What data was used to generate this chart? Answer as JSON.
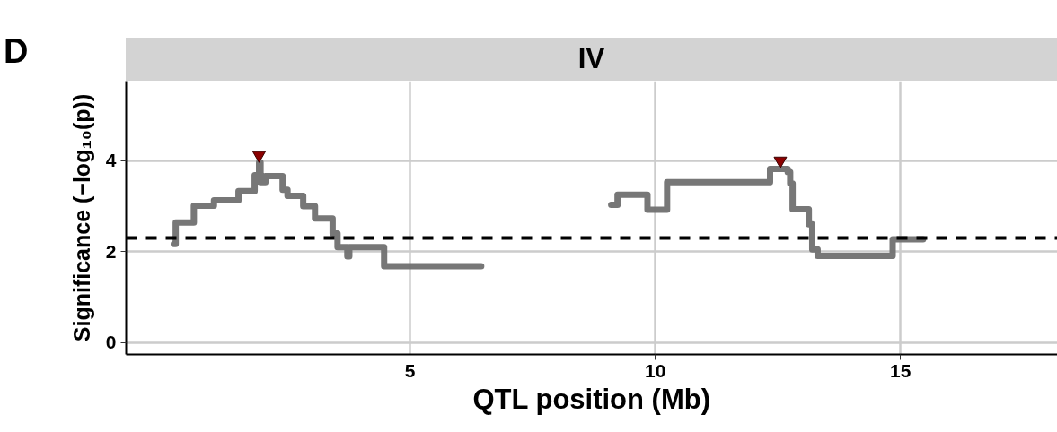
{
  "chart_data": {
    "type": "step",
    "title": "IV",
    "xlabel": "QTL position (Mb)",
    "ylabel": "Significance (−log₁₀(p))",
    "annotations": [
      "D"
    ],
    "xlim": [
      -0.79,
      18.2
    ],
    "ylim": [
      -0.26,
      5.75
    ],
    "xticks": [
      5,
      10,
      15
    ],
    "yticks": [
      0,
      2,
      4
    ],
    "grid": true,
    "line_style": "solid",
    "series": [
      {
        "color": "#707070",
        "x": [
          0.18,
          0.22,
          0.59,
          1.0,
          1.5,
          1.83,
          1.92,
          1.95,
          2.05,
          2.4,
          2.5,
          2.82,
          3.06,
          3.42,
          3.52,
          3.72,
          3.76,
          4.47,
          6.45,
          7.5,
          9.1,
          9.23,
          9.84,
          10.24,
          12.34,
          12.7,
          12.75,
          12.8,
          13.13,
          13.2,
          13.31,
          14.84,
          15.46
        ],
        "values": [
          2.17,
          2.64,
          3.01,
          3.13,
          3.33,
          3.68,
          3.96,
          3.53,
          3.66,
          3.36,
          3.23,
          3.0,
          2.73,
          2.4,
          2.1,
          1.9,
          2.1,
          1.68,
          1.68,
          null,
          3.03,
          3.25,
          2.92,
          3.53,
          3.82,
          3.75,
          3.5,
          2.93,
          2.6,
          2.05,
          1.91,
          2.27,
          2.27
        ]
      },
      {
        "type": "scatter",
        "marker": "triangle",
        "color": "#8b0000",
        "x": [
          1.92,
          12.55
        ],
        "values": [
          4.12,
          4.0
        ]
      }
    ],
    "ref_lines": [
      {
        "axis": "y",
        "value": 2.3,
        "color": "#000000",
        "line_style": "dashed"
      }
    ]
  }
}
